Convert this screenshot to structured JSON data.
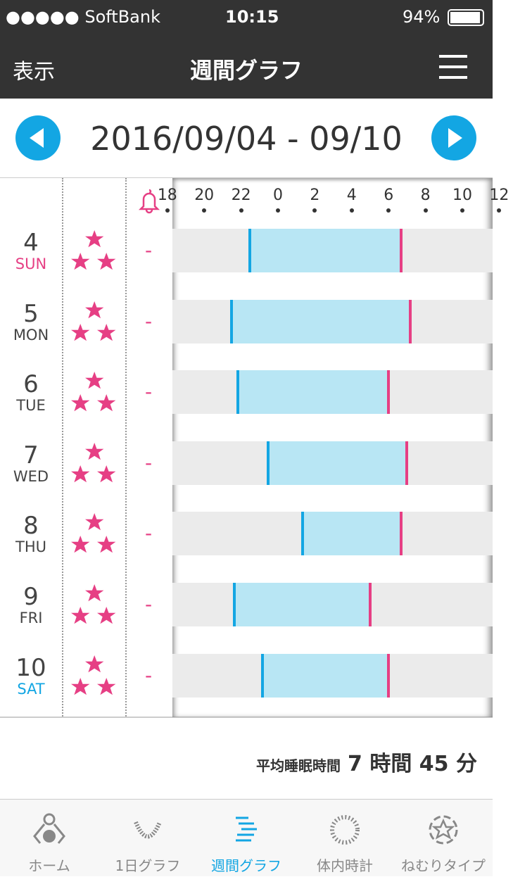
{
  "status_bar": {
    "carrier": "●●●●● SoftBank",
    "time": "10:15",
    "battery": "94%"
  },
  "header": {
    "left": "表示",
    "title": "週間グラフ",
    "menu_icon": "hamburger-icon"
  },
  "date_range": "2016/09/04 - 09/10",
  "colors": {
    "accent": "#13a6e3",
    "pink": "#e63f84",
    "bar": "#b8e6f4"
  },
  "chart_data": {
    "type": "timeline",
    "x_ticks": [
      "18",
      "20",
      "22",
      "0",
      "2",
      "4",
      "6",
      "8",
      "10",
      "12"
    ],
    "rows": [
      {
        "day": "4",
        "weekday": "SUN",
        "stars": 3,
        "alarm": "-",
        "sleep": "22:24",
        "wake": "6:45"
      },
      {
        "day": "5",
        "weekday": "MON",
        "stars": 3,
        "alarm": "-",
        "sleep": "21:24",
        "wake": "7:15"
      },
      {
        "day": "6",
        "weekday": "TUE",
        "stars": 3,
        "alarm": "-",
        "sleep": "21:45",
        "wake": "6:05"
      },
      {
        "day": "7",
        "weekday": "WED",
        "stars": 3,
        "alarm": "-",
        "sleep": "23:24",
        "wake": "7:04"
      },
      {
        "day": "8",
        "weekday": "THU",
        "stars": 3,
        "alarm": "-",
        "sleep": "1:16",
        "wake": "6:45"
      },
      {
        "day": "9",
        "weekday": "FRI",
        "stars": 3,
        "alarm": "-",
        "sleep": "21:34",
        "wake": "5:05"
      },
      {
        "day": "10",
        "weekday": "SAT",
        "stars": 3,
        "alarm": "-",
        "sleep": "23:05",
        "wake": "6:05"
      }
    ]
  },
  "summary": {
    "label": "平均睡眠時間",
    "value": "7 時間 45 分"
  },
  "tabs": [
    {
      "label": "ホーム",
      "icon": "home-person-icon"
    },
    {
      "label": "1日グラフ",
      "icon": "day-graph-icon"
    },
    {
      "label": "週間グラフ",
      "icon": "week-graph-icon",
      "active": true
    },
    {
      "label": "体内時計",
      "icon": "body-clock-icon"
    },
    {
      "label": "ねむりタイプ",
      "icon": "sleep-type-icon"
    }
  ]
}
